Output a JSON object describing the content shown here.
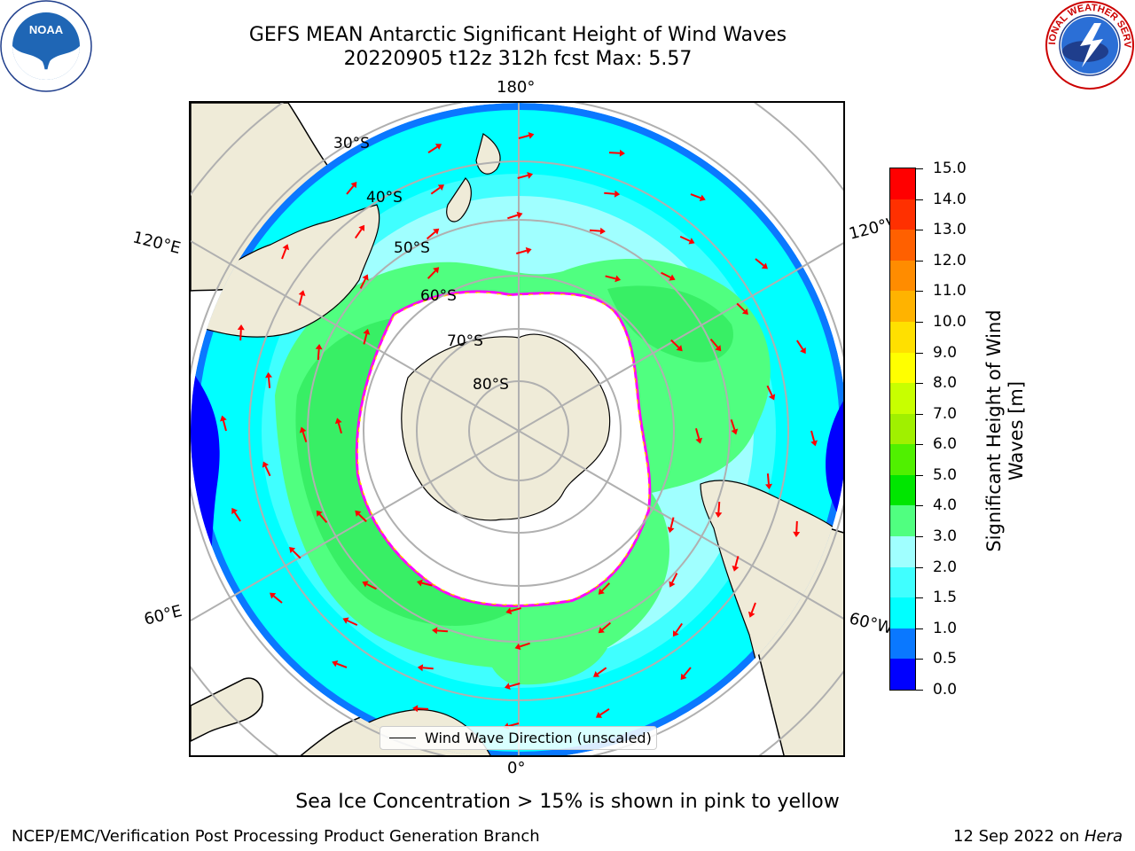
{
  "title": {
    "line1": "GEFS MEAN Antarctic Significant Height of Wind Waves",
    "line2": "20220905 t12z 312h fcst   Max: 5.57"
  },
  "logos": {
    "left": {
      "icon": "noaa-logo",
      "text": "NOAA"
    },
    "right": {
      "icon": "national-weather-service-logo",
      "text": "NATIONAL WEATHER SERVICE"
    }
  },
  "map": {
    "projection": "south-polar-stereographic",
    "longitude_labels": {
      "top": "180°",
      "bottom": "0°",
      "upper_left": "120°E",
      "lower_left": "60°E",
      "upper_right": "120°W",
      "lower_right": "60°W"
    },
    "latitude_labels": [
      "30°S",
      "40°S",
      "50°S",
      "60°S",
      "70°S",
      "80°S"
    ],
    "legend_label": "Wind Wave Direction (unscaled)",
    "arrow_color": "#ff0000",
    "land_color": "#efebd8",
    "sea_ice_edge_colors": [
      "#ff00ff",
      "#ffa500",
      "#ffff00"
    ],
    "grid_color": "#b0b0b0"
  },
  "colorbar": {
    "title": "Significant Height of Wind Waves [m]",
    "tick_labels": [
      "15.0",
      "14.0",
      "13.0",
      "12.0",
      "11.0",
      "10.0",
      "9.0",
      "8.0",
      "7.0",
      "6.0",
      "5.0",
      "4.0",
      "3.0",
      "2.0",
      "1.5",
      "1.0",
      "0.5",
      "0.0"
    ],
    "colors_bottom_to_top": [
      "#0000ff",
      "#0a78ff",
      "#00ffff",
      "#40ffff",
      "#a0ffff",
      "#50ff80",
      "#00e600",
      "#50f000",
      "#a0f000",
      "#c8ff00",
      "#ffff00",
      "#ffe000",
      "#ffb300",
      "#ff8c00",
      "#ff6000",
      "#ff3000",
      "#ff0000"
    ]
  },
  "note": "Sea Ice Concentration > 15% is shown in pink to yellow",
  "footer": {
    "left": "NCEP/EMC/Verification Post Processing Product Generation Branch",
    "right_prefix": "12 Sep 2022 on ",
    "right_machine": "Hera"
  }
}
